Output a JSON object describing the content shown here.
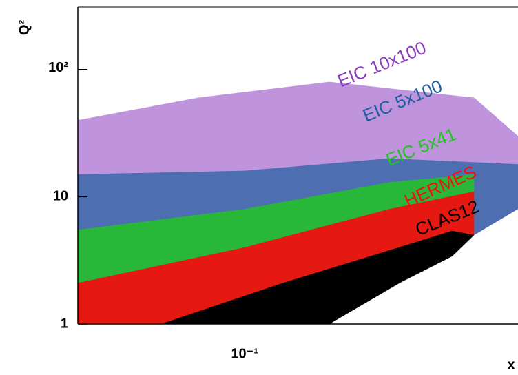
{
  "chart_data": {
    "type": "region",
    "x_label": "x",
    "y_label": "Q²",
    "xlim": [
      0.045,
      0.37
    ],
    "ylim": [
      1,
      310
    ],
    "xticks": [
      {
        "value": 0.1,
        "label": "10⁻¹"
      }
    ],
    "yticks": [
      1,
      10,
      {
        "value": 100,
        "label": "10²"
      }
    ],
    "xscale": "log",
    "yscale": "log",
    "series": [
      {
        "name": "EIC 10x100",
        "color": "#8a3cc0",
        "x": [
          0.045,
          0.045,
          0.08,
          0.15,
          0.3,
          0.37,
          0.37,
          0.3,
          0.21,
          0.15,
          0.045
        ],
        "y": [
          1,
          40,
          60,
          80,
          60,
          30,
          8,
          5,
          2.1,
          1,
          1
        ]
      },
      {
        "name": "EIC 5x100",
        "color": "#1c5fa0",
        "x": [
          0.045,
          0.045,
          0.1,
          0.2,
          0.37,
          0.37,
          0.3,
          0.21,
          0.15,
          0.045
        ],
        "y": [
          1,
          15,
          16,
          20,
          18,
          8,
          5,
          2.1,
          1,
          1
        ]
      },
      {
        "name": "EIC 5x41",
        "color": "#22c422",
        "x": [
          0.045,
          0.045,
          0.1,
          0.2,
          0.3,
          0.3,
          0.21,
          0.15,
          0.045
        ],
        "y": [
          1,
          5.5,
          8,
          13,
          15,
          5,
          2.1,
          1,
          1
        ]
      },
      {
        "name": "HERMES",
        "color": "#f01010",
        "x": [
          0.045,
          0.045,
          0.1,
          0.2,
          0.3,
          0.3,
          0.21,
          0.15,
          0.045
        ],
        "y": [
          1,
          2.1,
          4,
          8,
          11,
          5,
          2.1,
          1,
          1
        ]
      },
      {
        "name": "CLAS12",
        "color": "#000000",
        "x": [
          0.067,
          0.15,
          0.21,
          0.27,
          0.3,
          0.27,
          0.2,
          0.12
        ],
        "y": [
          1,
          1,
          2.1,
          3.4,
          5,
          5.4,
          3.8,
          2.1
        ]
      }
    ]
  }
}
